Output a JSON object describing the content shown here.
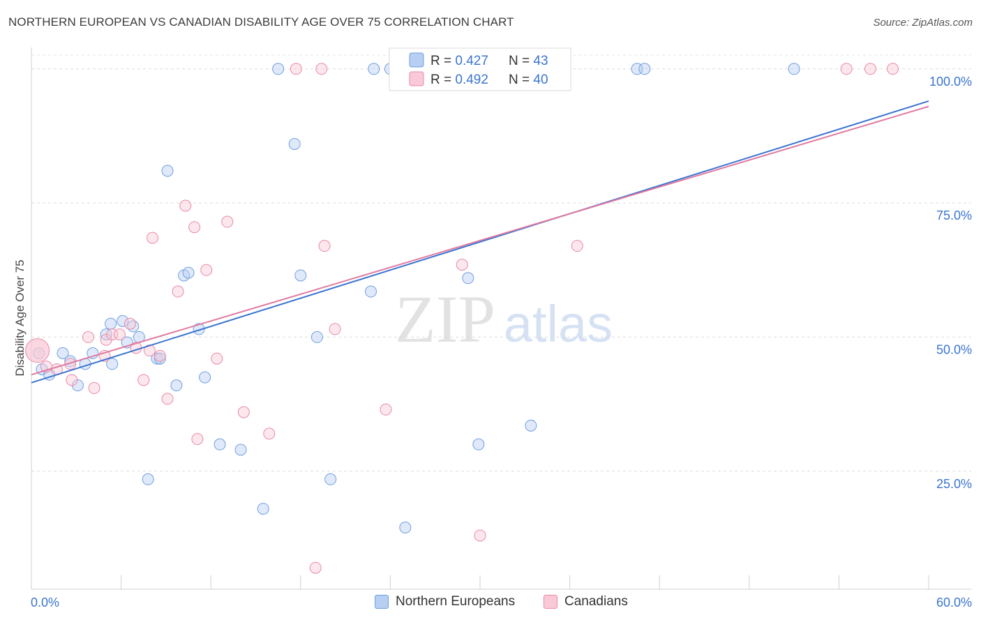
{
  "title": "NORTHERN EUROPEAN VS CANADIAN DISABILITY AGE OVER 75 CORRELATION CHART",
  "source": "Source: ZipAtlas.com",
  "watermark": {
    "zip": "ZIP",
    "atlas": "atlas"
  },
  "legend_stats": [
    {
      "r_label": "R = ",
      "r_value": "0.427",
      "n_label": "N = ",
      "n_value": "43",
      "color": "#a9c6f0",
      "stroke": "#6f9fe0"
    },
    {
      "r_label": "R = ",
      "r_value": "0.492",
      "n_label": "N = ",
      "n_value": "40",
      "color": "#f7bfd0",
      "stroke": "#e88aa8"
    }
  ],
  "legend_bottom": [
    {
      "name": "Northern Europeans",
      "color": "#b7cff2",
      "stroke": "#6f9fe0"
    },
    {
      "name": "Canadians",
      "color": "#f9c9d7",
      "stroke": "#e88aa8"
    }
  ],
  "chart_data": {
    "type": "scatter",
    "title": "NORTHERN EUROPEAN VS CANADIAN DISABILITY AGE OVER 75 CORRELATION CHART",
    "xlabel": "",
    "ylabel": "Disability Age Over 75",
    "xlim": [
      0,
      60
    ],
    "ylim": [
      3,
      104
    ],
    "x_tick_labels": [
      {
        "value": 0,
        "label": "0.0%"
      },
      {
        "value": 60,
        "label": "60.0%"
      }
    ],
    "y_tick_labels": [
      {
        "value": 25,
        "label": "25.0%"
      },
      {
        "value": 50,
        "label": "50.0%"
      },
      {
        "value": 75,
        "label": "75.0%"
      },
      {
        "value": 100,
        "label": "100.0%"
      }
    ],
    "grid": true,
    "legend": "top-center",
    "series": [
      {
        "name": "Northern Europeans",
        "color": "#6f9fe0",
        "fill": "#b7cff2",
        "trend": {
          "x": [
            0,
            60
          ],
          "y": [
            41.5,
            94
          ]
        },
        "points": [
          [
            0.5,
            47
          ],
          [
            0.7,
            44
          ],
          [
            1.2,
            43
          ],
          [
            2.1,
            47
          ],
          [
            2.6,
            45.5
          ],
          [
            3.1,
            41
          ],
          [
            3.6,
            45
          ],
          [
            4.1,
            47
          ],
          [
            5.0,
            50.5
          ],
          [
            5.3,
            52.5
          ],
          [
            5.4,
            45
          ],
          [
            6.1,
            53
          ],
          [
            6.4,
            49
          ],
          [
            6.8,
            52
          ],
          [
            7.2,
            50
          ],
          [
            7.8,
            23.5
          ],
          [
            8.4,
            46
          ],
          [
            8.6,
            46
          ],
          [
            9.1,
            81
          ],
          [
            9.7,
            41
          ],
          [
            10.2,
            61.5
          ],
          [
            10.5,
            62
          ],
          [
            11.2,
            51.5
          ],
          [
            11.6,
            42.5
          ],
          [
            12.6,
            30
          ],
          [
            14.0,
            29
          ],
          [
            15.5,
            18
          ],
          [
            16.5,
            100
          ],
          [
            17.6,
            86
          ],
          [
            18.0,
            61.5
          ],
          [
            19.1,
            50
          ],
          [
            20.0,
            23.5
          ],
          [
            22.7,
            58.5
          ],
          [
            22.9,
            100
          ],
          [
            24.0,
            100
          ],
          [
            26.4,
            100
          ],
          [
            29.2,
            61
          ],
          [
            29.9,
            30
          ],
          [
            33.4,
            33.5
          ],
          [
            40.5,
            100
          ],
          [
            51.0,
            100
          ],
          [
            25.0,
            14.5
          ],
          [
            41.0,
            100
          ]
        ]
      },
      {
        "name": "Canadians",
        "color": "#e88aa8",
        "fill": "#f9c9d7",
        "trend": {
          "x": [
            0,
            60
          ],
          "y": [
            43,
            93
          ]
        },
        "points": [
          [
            0.4,
            47.5
          ],
          [
            1.0,
            44.5
          ],
          [
            1.7,
            44
          ],
          [
            2.6,
            45
          ],
          [
            2.7,
            42
          ],
          [
            3.8,
            50
          ],
          [
            4.2,
            40.5
          ],
          [
            4.9,
            46.5
          ],
          [
            5.0,
            49.5
          ],
          [
            5.4,
            50.5
          ],
          [
            5.9,
            50.5
          ],
          [
            6.6,
            52.5
          ],
          [
            7.0,
            48
          ],
          [
            7.5,
            42
          ],
          [
            7.9,
            47.5
          ],
          [
            8.1,
            68.5
          ],
          [
            8.6,
            46.5
          ],
          [
            9.1,
            38.5
          ],
          [
            9.8,
            58.5
          ],
          [
            10.3,
            74.5
          ],
          [
            10.9,
            70.5
          ],
          [
            11.1,
            31
          ],
          [
            11.7,
            62.5
          ],
          [
            12.4,
            46
          ],
          [
            13.1,
            71.5
          ],
          [
            14.2,
            36
          ],
          [
            15.9,
            32
          ],
          [
            17.7,
            100
          ],
          [
            19.0,
            7
          ],
          [
            19.4,
            100
          ],
          [
            19.6,
            67
          ],
          [
            20.3,
            51.5
          ],
          [
            23.7,
            36.5
          ],
          [
            28.8,
            63.5
          ],
          [
            30.0,
            13
          ],
          [
            35.6,
            100
          ],
          [
            36.5,
            67
          ],
          [
            54.5,
            100
          ],
          [
            56.1,
            100
          ],
          [
            57.6,
            100
          ]
        ]
      }
    ]
  }
}
